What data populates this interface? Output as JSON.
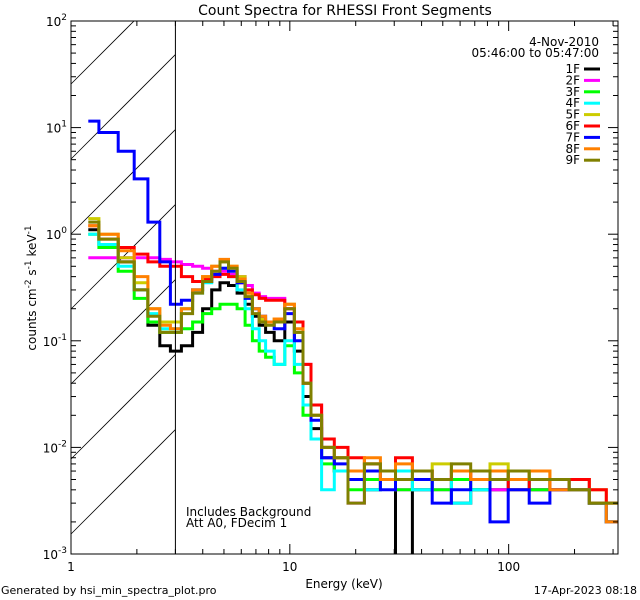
{
  "chart_data": {
    "type": "line",
    "title": "Count Spectra for RHESSI Front Segments",
    "xlabel": "Energy (keV)",
    "ylabel_base": "counts cm",
    "ylabel_parts": [
      "counts cm",
      "-2",
      " s",
      "-1",
      " keV",
      "-1"
    ],
    "xscale": "log",
    "yscale": "log",
    "xlim": [
      1,
      316
    ],
    "ylim": [
      0.001,
      100
    ],
    "x_ticks": [
      {
        "v": 1,
        "label": "1"
      },
      {
        "v": 10,
        "label": "10"
      },
      {
        "v": 100,
        "label": "100"
      }
    ],
    "y_ticks": [
      {
        "v": 0.001,
        "base": "10",
        "exp": "-3"
      },
      {
        "v": 0.01,
        "base": "10",
        "exp": "-2"
      },
      {
        "v": 0.1,
        "base": "10",
        "exp": "-1"
      },
      {
        "v": 1,
        "base": "10",
        "exp": "0"
      },
      {
        "v": 10,
        "base": "10",
        "exp": "1"
      },
      {
        "v": 100,
        "base": "10",
        "exp": "2"
      }
    ],
    "hatched_region_keV": [
      1,
      3
    ],
    "legend_position": "top-right",
    "date": "4-Nov-2010",
    "time_range": "05:46:00 to 05:47:00",
    "annotations": [
      "Includes Background",
      "Att A0, FDecim 1"
    ],
    "energy": [
      1.2,
      1.5,
      1.8,
      2.1,
      2.4,
      2.7,
      3.0,
      3.4,
      3.8,
      4.2,
      4.6,
      5.0,
      5.5,
      6.0,
      6.5,
      7.0,
      7.5,
      8,
      9,
      10,
      11,
      12,
      13,
      15,
      17,
      20,
      24,
      28,
      33,
      40,
      50,
      60,
      75,
      90,
      110,
      140,
      170,
      210,
      260,
      300
    ],
    "series": [
      {
        "name": "1F",
        "color": "#000000",
        "values": [
          1.1,
          0.8,
          0.55,
          0.3,
          0.14,
          0.09,
          0.08,
          0.09,
          0.12,
          0.2,
          0.3,
          0.35,
          0.33,
          0.28,
          0.22,
          0.17,
          0.14,
          0.12,
          0.1,
          0.15,
          0.08,
          0.03,
          0.015,
          0.008,
          0.006,
          0.005,
          0.004,
          0.005,
          0.0008,
          0.004,
          0.005,
          0.003,
          0.004,
          0.004,
          0.005,
          0.004,
          0.005,
          0.004,
          0.003,
          0.002
        ]
      },
      {
        "name": "2F",
        "color": "#ff00ff",
        "values": [
          0.6,
          0.6,
          0.6,
          0.6,
          0.6,
          0.58,
          0.55,
          0.52,
          0.5,
          0.48,
          0.45,
          0.45,
          0.42,
          0.4,
          0.33,
          0.28,
          0.26,
          0.25,
          0.25,
          0.2,
          0.15,
          0.06,
          0.025,
          0.01,
          0.008,
          0.003,
          0.006,
          0.005,
          0.004,
          0.005,
          0.004,
          0.006,
          0.005,
          0.004,
          0.005,
          0.004,
          0.004,
          0.005,
          0.003,
          0.002
        ]
      },
      {
        "name": "3F",
        "color": "#00ff00",
        "values": [
          1.0,
          0.75,
          0.45,
          0.25,
          0.15,
          0.12,
          0.12,
          0.13,
          0.15,
          0.18,
          0.2,
          0.22,
          0.22,
          0.2,
          0.14,
          0.1,
          0.08,
          0.07,
          0.06,
          0.09,
          0.05,
          0.02,
          0.012,
          0.007,
          0.006,
          0.004,
          0.005,
          0.006,
          0.004,
          0.005,
          0.004,
          0.005,
          0.004,
          0.005,
          0.006,
          0.004,
          0.005,
          0.004,
          0.003,
          0.002
        ]
      },
      {
        "name": "4F",
        "color": "#00ffff",
        "values": [
          1.0,
          0.8,
          0.5,
          0.3,
          0.18,
          0.13,
          0.13,
          0.2,
          0.28,
          0.35,
          0.42,
          0.48,
          0.4,
          0.3,
          0.2,
          0.13,
          0.1,
          0.08,
          0.06,
          0.1,
          0.06,
          0.025,
          0.012,
          0.004,
          0.006,
          0.005,
          0.004,
          0.005,
          0.006,
          0.004,
          0.005,
          0.003,
          0.004,
          0.005,
          0.004,
          0.005,
          0.004,
          0.004,
          0.003,
          0.002
        ]
      },
      {
        "name": "5F",
        "color": "#cccc00",
        "values": [
          1.4,
          1.0,
          0.6,
          0.35,
          0.2,
          0.15,
          0.15,
          0.2,
          0.3,
          0.4,
          0.5,
          0.55,
          0.5,
          0.4,
          0.28,
          0.2,
          0.16,
          0.15,
          0.16,
          0.22,
          0.12,
          0.04,
          0.02,
          0.01,
          0.008,
          0.006,
          0.007,
          0.006,
          0.005,
          0.006,
          0.007,
          0.006,
          0.005,
          0.007,
          0.005,
          0.006,
          0.005,
          0.005,
          0.004,
          0.003
        ]
      },
      {
        "name": "6F",
        "color": "#ff0000",
        "values": [
          1.2,
          0.9,
          0.75,
          0.65,
          0.55,
          0.5,
          0.5,
          0.4,
          0.36,
          0.38,
          0.4,
          0.42,
          0.4,
          0.35,
          0.3,
          0.27,
          0.25,
          0.24,
          0.24,
          0.2,
          0.15,
          0.06,
          0.025,
          0.012,
          0.01,
          0.008,
          0.007,
          0.006,
          0.008,
          0.006,
          0.005,
          0.006,
          0.005,
          0.006,
          0.004,
          0.005,
          0.004,
          0.005,
          0.004,
          0.003
        ]
      },
      {
        "name": "7F",
        "color": "#0000ff",
        "values": [
          11.5,
          9,
          6,
          3.3,
          1.3,
          0.55,
          0.22,
          0.24,
          0.3,
          0.36,
          0.42,
          0.48,
          0.45,
          0.35,
          0.25,
          0.2,
          0.17,
          0.15,
          0.13,
          0.18,
          0.1,
          0.04,
          0.018,
          0.008,
          0.007,
          0.005,
          0.006,
          0.004,
          0.005,
          0.005,
          0.003,
          0.004,
          0.005,
          0.002,
          0.004,
          0.003,
          0.004,
          0.004,
          0.003,
          0.002
        ]
      },
      {
        "name": "8F",
        "color": "#ff8000",
        "values": [
          1.2,
          1.0,
          0.7,
          0.4,
          0.2,
          0.14,
          0.13,
          0.2,
          0.3,
          0.4,
          0.5,
          0.58,
          0.5,
          0.38,
          0.28,
          0.2,
          0.17,
          0.15,
          0.16,
          0.22,
          0.13,
          0.04,
          0.02,
          0.01,
          0.008,
          0.006,
          0.008,
          0.005,
          0.007,
          0.006,
          0.005,
          0.006,
          0.005,
          0.006,
          0.005,
          0.006,
          0.004,
          0.004,
          0.003,
          0.002
        ]
      },
      {
        "name": "9F",
        "color": "#808000",
        "values": [
          1.3,
          0.9,
          0.55,
          0.3,
          0.17,
          0.12,
          0.12,
          0.18,
          0.28,
          0.36,
          0.45,
          0.55,
          0.48,
          0.36,
          0.26,
          0.18,
          0.15,
          0.14,
          0.15,
          0.2,
          0.12,
          0.04,
          0.02,
          0.01,
          0.008,
          0.003,
          0.007,
          0.006,
          0.005,
          0.006,
          0.005,
          0.007,
          0.006,
          0.005,
          0.006,
          0.005,
          0.005,
          0.004,
          0.003,
          0.003
        ]
      }
    ]
  },
  "footer": {
    "generated_by": "Generated by hsi_min_spectra_plot.pro",
    "timestamp": "17-Apr-2023 08:18"
  }
}
